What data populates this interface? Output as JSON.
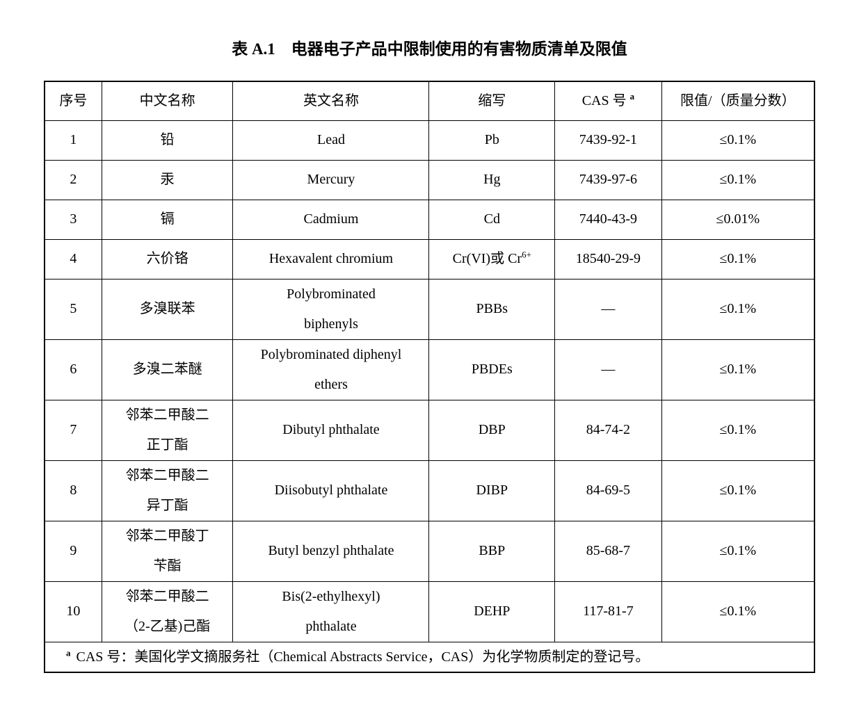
{
  "title": "表 A.1　电器电子产品中限制使用的有害物质清单及限值",
  "table": {
    "headers": [
      "序号",
      "中文名称",
      "英文名称",
      "缩写",
      "CAS 号",
      "限值/（质量分数）"
    ],
    "cas_sup": "a",
    "rows": [
      {
        "no": "1",
        "cn": "铅",
        "en": "Lead",
        "abbr": "Pb",
        "cas": "7439-92-1",
        "limit": "≤0.1%"
      },
      {
        "no": "2",
        "cn": "汞",
        "en": "Mercury",
        "abbr": "Hg",
        "cas": "7439-97-6",
        "limit": "≤0.1%"
      },
      {
        "no": "3",
        "cn": "镉",
        "en": "Cadmium",
        "abbr": "Cd",
        "cas": "7440-43-9",
        "limit": "≤0.01%"
      },
      {
        "no": "4",
        "cn": "六价铬",
        "en": "Hexavalent chromium",
        "abbr_base": "Cr(VI)或 Cr",
        "abbr_sup": "6+",
        "cas": "18540-29-9",
        "limit": "≤0.1%"
      },
      {
        "no": "5",
        "cn": "多溴联苯",
        "en": "Polybrominated\nbiphenyls",
        "abbr": "PBBs",
        "cas": "—",
        "limit": "≤0.1%"
      },
      {
        "no": "6",
        "cn": "多溴二苯醚",
        "en": "Polybrominated diphenyl\nethers",
        "abbr": "PBDEs",
        "cas": "—",
        "limit": "≤0.1%"
      },
      {
        "no": "7",
        "cn": "邻苯二甲酸二\n正丁酯",
        "en": "Dibutyl phthalate",
        "abbr": "DBP",
        "cas": "84-74-2",
        "limit": "≤0.1%"
      },
      {
        "no": "8",
        "cn": "邻苯二甲酸二\n异丁酯",
        "en": "Diisobutyl phthalate",
        "abbr": "DIBP",
        "cas": "84-69-5",
        "limit": "≤0.1%"
      },
      {
        "no": "9",
        "cn": "邻苯二甲酸丁\n苄酯",
        "en": "Butyl benzyl phthalate",
        "abbr": "BBP",
        "cas": "85-68-7",
        "limit": "≤0.1%"
      },
      {
        "no": "10",
        "cn": "邻苯二甲酸二\n（2-乙基)己酯",
        "en": "Bis(2-ethylhexyl)\nphthalate",
        "abbr": "DEHP",
        "cas": "117-81-7",
        "limit": "≤0.1%"
      }
    ],
    "footnote": {
      "marker": "a",
      "text": "CAS 号：美国化学文摘服务社（Chemical Abstracts Service，CAS）为化学物质制定的登记号。"
    }
  }
}
